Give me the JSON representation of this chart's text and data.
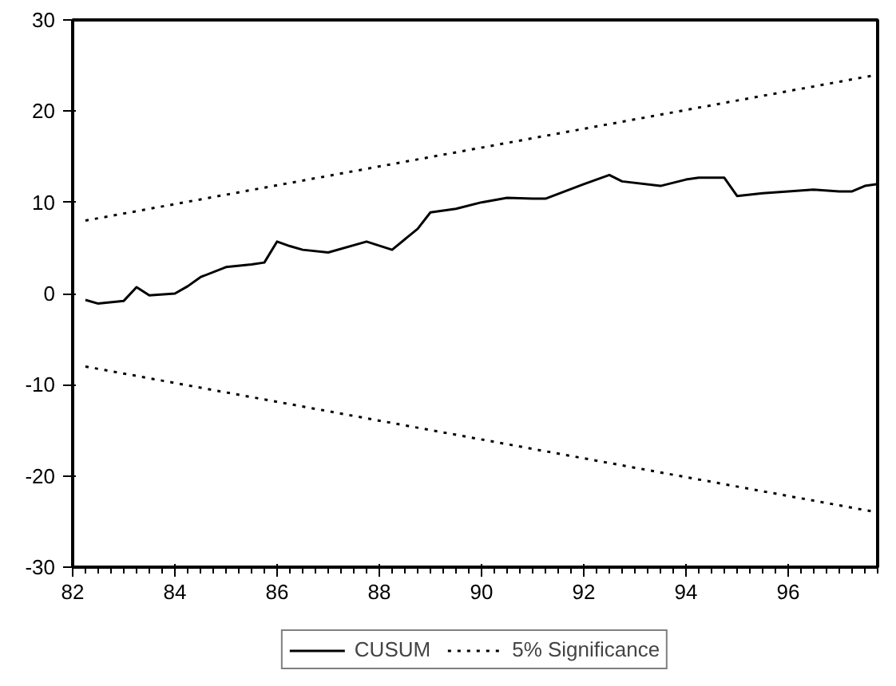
{
  "chart_data": {
    "type": "line",
    "xlim": [
      82,
      97.75
    ],
    "xticks": [
      82,
      84,
      86,
      88,
      90,
      92,
      94,
      96
    ],
    "ylim": [
      -30,
      30
    ],
    "yticks": [
      -30,
      -20,
      -10,
      0,
      10,
      20,
      30
    ],
    "grid": false,
    "legend": "bottom",
    "marker": "none",
    "series": [
      {
        "name": "CUSUM",
        "color": "#000000",
        "line_style": "solid",
        "x": [
          82.25,
          82.5,
          83.0,
          83.25,
          83.5,
          84.0,
          84.25,
          84.5,
          85.0,
          85.5,
          85.75,
          86.0,
          86.25,
          86.5,
          87.0,
          87.75,
          88.25,
          88.75,
          89.0,
          89.5,
          90.0,
          90.5,
          91.0,
          91.25,
          92.0,
          92.5,
          92.75,
          93.5,
          94.0,
          94.25,
          94.75,
          95.0,
          95.5,
          96.0,
          96.5,
          97.0,
          97.25,
          97.5,
          97.75
        ],
        "values": [
          -0.7,
          -1.1,
          -0.8,
          0.7,
          -0.2,
          0.0,
          0.8,
          1.8,
          2.9,
          3.2,
          3.4,
          5.7,
          5.2,
          4.8,
          4.5,
          5.7,
          4.8,
          7.1,
          8.9,
          9.3,
          10.0,
          10.5,
          10.4,
          10.4,
          12.0,
          13.0,
          12.3,
          11.8,
          12.5,
          12.7,
          12.7,
          10.7,
          11.0,
          11.2,
          11.4,
          11.2,
          11.2,
          11.8,
          12.0
        ]
      },
      {
        "name": "5% Significance",
        "color": "#000000",
        "line_style": "dotted",
        "x": [
          82.25,
          97.75
        ],
        "values": [
          8.0,
          24.0
        ]
      },
      {
        "color": "#000000",
        "line_style": "dotted",
        "x": [
          82.25,
          97.75
        ],
        "values": [
          -8.0,
          -24.0
        ]
      }
    ]
  }
}
